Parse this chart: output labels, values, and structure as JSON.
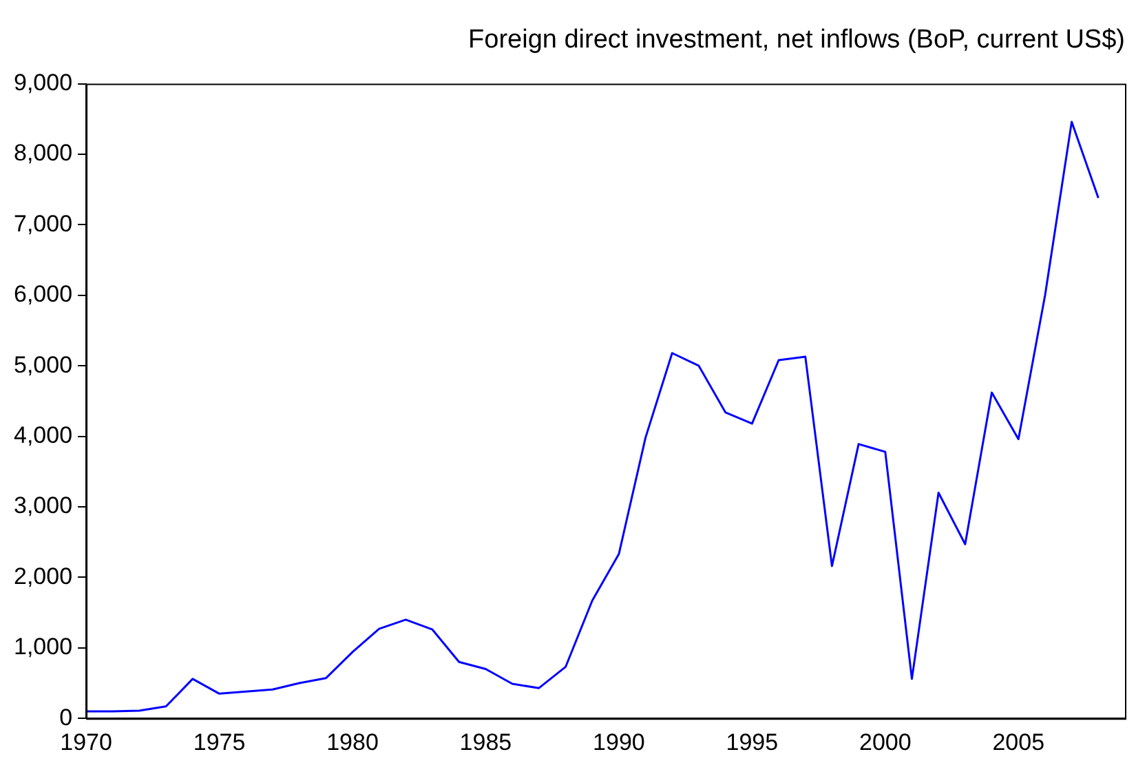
{
  "chart_data": {
    "type": "line",
    "title": "Foreign direct investment, net inflows (BoP, current US$)",
    "x": [
      1970,
      1971,
      1972,
      1973,
      1974,
      1975,
      1976,
      1977,
      1978,
      1979,
      1980,
      1981,
      1982,
      1983,
      1984,
      1985,
      1986,
      1987,
      1988,
      1989,
      1990,
      1991,
      1992,
      1993,
      1994,
      1995,
      1996,
      1997,
      1998,
      1999,
      2000,
      2001,
      2002,
      2003,
      2004,
      2005,
      2006,
      2007,
      2008
    ],
    "series": [
      {
        "color": "#0000ff",
        "values": [
          100,
          100,
          110,
          170,
          560,
          350,
          380,
          410,
          500,
          570,
          940,
          1270,
          1400,
          1260,
          800,
          700,
          490,
          430,
          730,
          1670,
          2330,
          3980,
          5180,
          5000,
          4340,
          4180,
          5080,
          5130,
          2160,
          3890,
          3780,
          560,
          3200,
          2470,
          4620,
          3960,
          6000,
          8460,
          7380
        ]
      }
    ],
    "xlim": [
      1970,
      2009
    ],
    "xticks": [
      1970,
      1975,
      1980,
      1985,
      1990,
      1995,
      2000,
      2005
    ],
    "ylim": [
      0,
      9000
    ],
    "yticks": [
      {
        "value": 0,
        "label": "0"
      },
      {
        "value": 1000,
        "label": "1,000"
      },
      {
        "value": 2000,
        "label": "2,000"
      },
      {
        "value": 3000,
        "label": "3,000"
      },
      {
        "value": 4000,
        "label": "4,000"
      },
      {
        "value": 5000,
        "label": "5,000"
      },
      {
        "value": 6000,
        "label": "6,000"
      },
      {
        "value": 7000,
        "label": "7,000"
      },
      {
        "value": 8000,
        "label": "8,000"
      },
      {
        "value": 9000,
        "label": "9,000"
      }
    ],
    "grid": false,
    "legend": false,
    "marker": "none",
    "line_style": "solid"
  }
}
